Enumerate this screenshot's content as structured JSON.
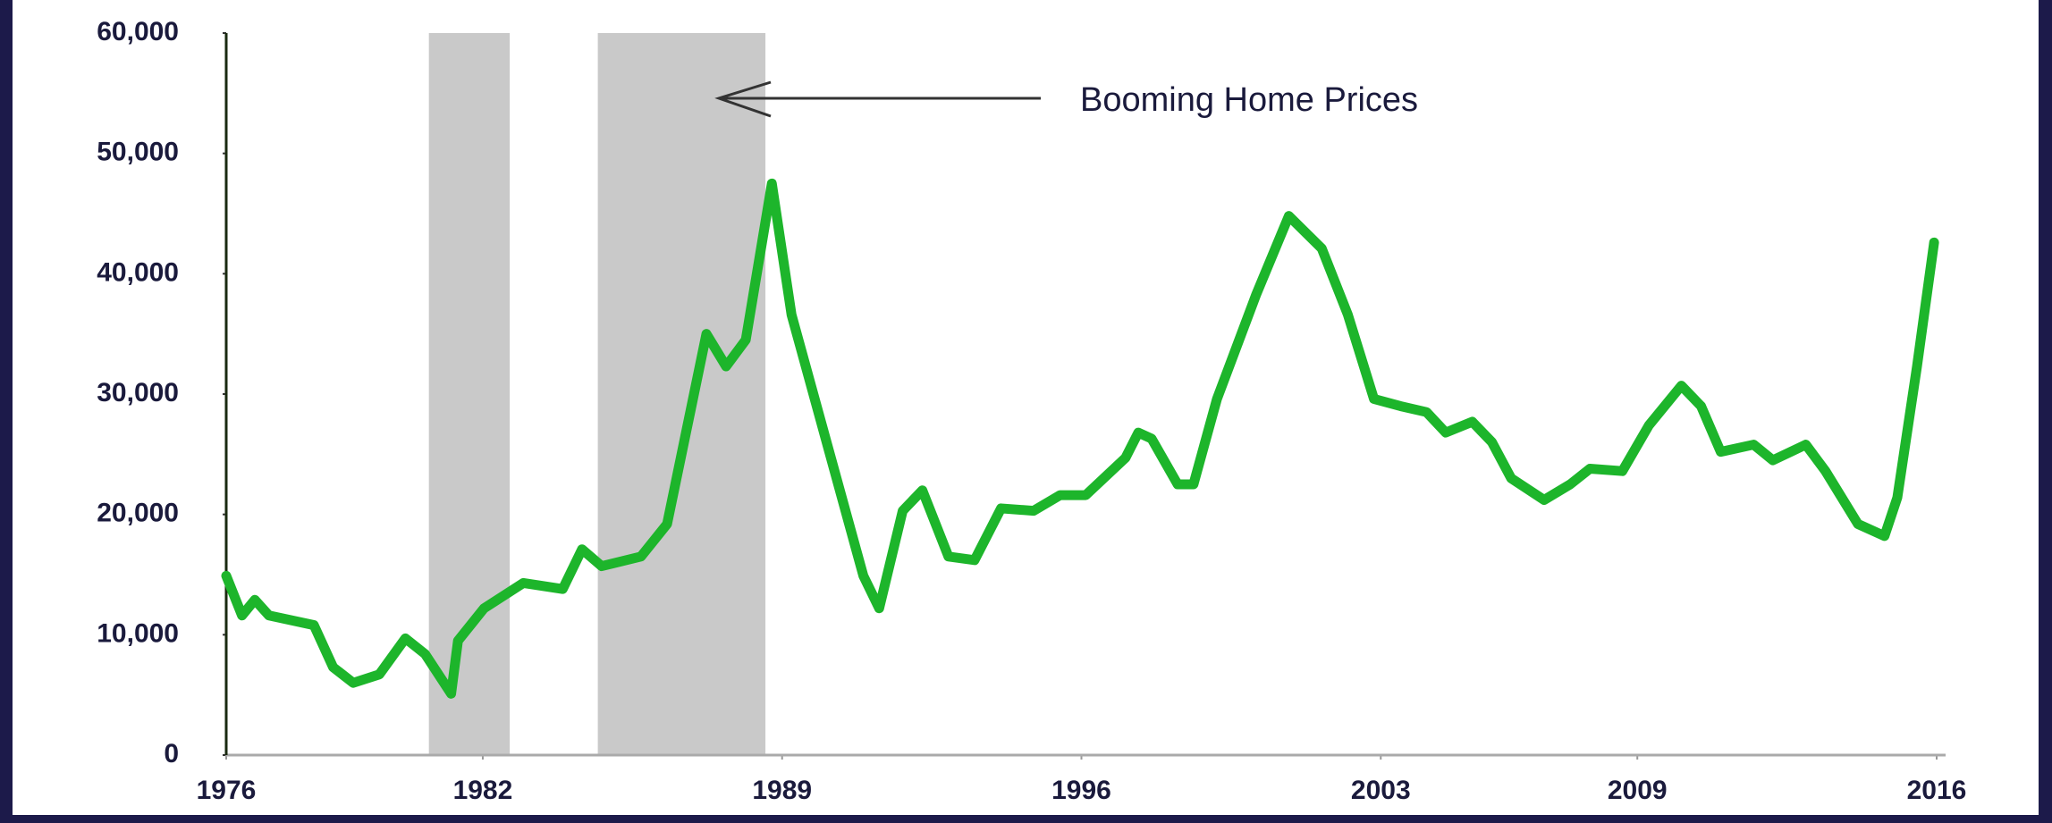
{
  "chart_data": {
    "type": "line",
    "annotation": "Booming Home Prices",
    "x": [
      1976.0,
      1976.37,
      1976.67,
      1977.0,
      1978.05,
      1978.5,
      1978.97,
      1979.58,
      1980.19,
      1980.65,
      1981.26,
      1981.42,
      1982.03,
      1982.95,
      1983.87,
      1984.32,
      1984.78,
      1985.7,
      1986.31,
      1987.23,
      1987.69,
      1988.15,
      1988.76,
      1989.22,
      1990.9,
      1991.27,
      1991.82,
      1992.28,
      1992.89,
      1993.5,
      1994.12,
      1994.88,
      1995.5,
      1996.1,
      1997.03,
      1997.33,
      1997.64,
      1998.25,
      1998.62,
      1999.17,
      2000.09,
      2000.85,
      2001.62,
      2002.23,
      2002.84,
      2003.46,
      2004.07,
      2004.52,
      2005.14,
      2005.6,
      2006.05,
      2006.82,
      2007.43,
      2007.89,
      2008.65,
      2009.27,
      2010.03,
      2010.49,
      2010.95,
      2011.72,
      2012.17,
      2012.94,
      2013.4,
      2014.16,
      2014.78,
      2015.08,
      2015.54,
      2015.94
    ],
    "series": [
      {
        "color": "#1db52b",
        "values": [
          14900,
          11600,
          12900,
          11600,
          10800,
          7300,
          6000,
          6700,
          9700,
          8400,
          5100,
          9500,
          12200,
          14300,
          13800,
          17100,
          15700,
          16500,
          19200,
          35000,
          32300,
          34500,
          47500,
          36600,
          14900,
          12200,
          20300,
          22000,
          16500,
          16200,
          20500,
          20300,
          21600,
          21600,
          24700,
          26800,
          26300,
          22500,
          22500,
          29600,
          38300,
          44800,
          42100,
          36600,
          29600,
          29000,
          28500,
          26800,
          27700,
          26000,
          23000,
          21200,
          22500,
          23800,
          23600,
          27400,
          30700,
          29000,
          25200,
          25800,
          24500,
          25800,
          23600,
          19200,
          18200,
          21400,
          32300,
          42600
        ]
      }
    ],
    "shaded_regions": [
      [
        1980.74,
        1982.63
      ],
      [
        1984.69,
        1988.61
      ]
    ],
    "shade_color": "#c9c9c9",
    "xlim": [
      1976,
      2016
    ],
    "xticks": [
      1976,
      1982,
      1989,
      1996,
      2003,
      2009,
      2016
    ],
    "ylim": [
      0,
      60000
    ],
    "yticks": [
      0,
      {
        "value": 10000,
        "label": "10,000"
      },
      {
        "value": 20000,
        "label": "20,000"
      },
      {
        "value": 30000,
        "label": "30,000"
      },
      {
        "value": 40000,
        "label": "40,000"
      },
      {
        "value": 50000,
        "label": "50,000"
      },
      {
        "value": 60000,
        "label": "60,000"
      }
    ]
  }
}
